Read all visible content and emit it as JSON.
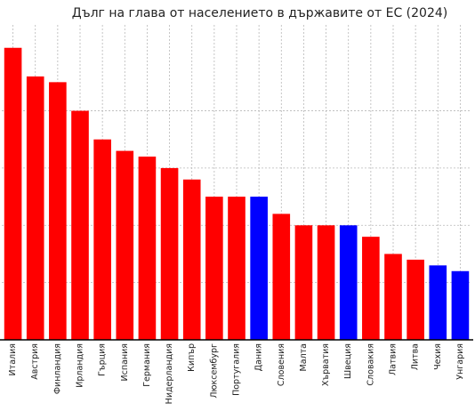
{
  "chart_data": {
    "type": "bar",
    "title": "Дълг на глава от населението в държавите от ЕС (2024)",
    "xlabel": "",
    "ylabel": "",
    "categories": [
      "Италия",
      "Австрия",
      "Финландия",
      "Ирландия",
      "Гърция",
      "Испания",
      "Германия",
      "Нидерландия",
      "Кипър",
      "Люксембург",
      "Португалия",
      "Дания",
      "Словения",
      "Малта",
      "Хърватия",
      "Швеция",
      "Словакия",
      "Латвия",
      "Литва",
      "Чехия",
      "Унгария"
    ],
    "values": [
      100,
      90,
      88,
      78,
      68,
      64,
      62,
      58,
      54,
      48,
      48,
      48,
      42,
      38,
      38,
      38,
      34,
      28,
      26,
      24,
      22
    ],
    "ylim": [
      -2,
      108
    ],
    "bar_colors": [
      "#ff0000",
      "#ff0000",
      "#ff0000",
      "#ff0000",
      "#ff0000",
      "#ff0000",
      "#ff0000",
      "#ff0000",
      "#ff0000",
      "#ff0000",
      "#ff0000",
      "#0000ff",
      "#ff0000",
      "#ff0000",
      "#ff0000",
      "#0000ff",
      "#ff0000",
      "#ff0000",
      "#ff0000",
      "#0000ff",
      "#0000ff"
    ],
    "y_ticks": [
      18,
      38,
      58,
      78
    ],
    "grid": true,
    "y_tick_labels_shown": false
  }
}
